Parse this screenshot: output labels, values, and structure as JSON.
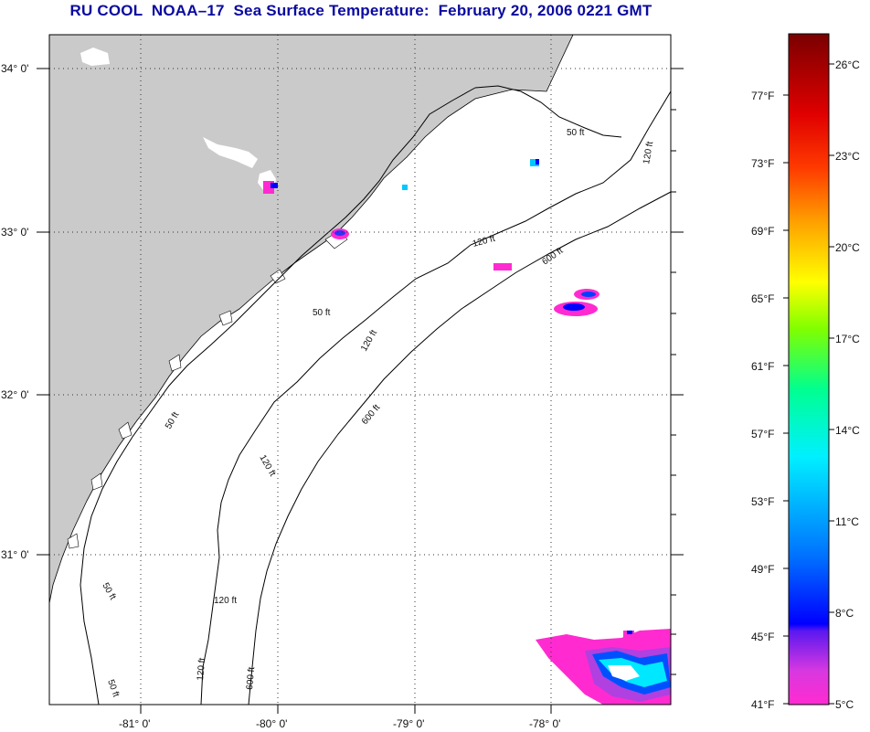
{
  "title": "RU COOL  NOAA–17  Sea Surface Temperature:  February 20, 2006 0221 GMT",
  "colors": {
    "land": "#cacaca",
    "ocean": "#ffffff",
    "cloud_mask": "#ffffff",
    "title": "#0a0aa0",
    "grid": "#333333"
  },
  "map": {
    "latitude_labels": [
      "34° 0'",
      "33° 0'",
      "32° 0'",
      "31° 0'"
    ],
    "longitude_labels": [
      "-81° 0'",
      "-80° 0'",
      "-79° 0'",
      "-78° 0'"
    ],
    "contour_labels": [
      {
        "text": "50 ft",
        "depth_ft": 50
      },
      {
        "text": "50 ft",
        "depth_ft": 50
      },
      {
        "text": "50 ft",
        "depth_ft": 50
      },
      {
        "text": "50 ft",
        "depth_ft": 50
      },
      {
        "text": "50 ft",
        "depth_ft": 50
      },
      {
        "text": "120 ft",
        "depth_ft": 120
      },
      {
        "text": "120 ft",
        "depth_ft": 120
      },
      {
        "text": "120 ft",
        "depth_ft": 120
      },
      {
        "text": "120 ft",
        "depth_ft": 120
      },
      {
        "text": "120 ft",
        "depth_ft": 120
      },
      {
        "text": "120 ft",
        "depth_ft": 120
      },
      {
        "text": "600 ft",
        "depth_ft": 600
      },
      {
        "text": "600 ft",
        "depth_ft": 600
      },
      {
        "text": "600 ft",
        "depth_ft": 600
      }
    ],
    "grid": "dotted"
  },
  "colorbar": {
    "stops": [
      "#ff2bd0",
      "#b040e0",
      "#0000ff",
      "#0078ff",
      "#00e8ff",
      "#00ff90",
      "#70ff00",
      "#ffff00",
      "#ffa000",
      "#ff3000",
      "#e00000",
      "#800000"
    ],
    "fahrenheit_labels": [
      "41°F",
      "45°F",
      "49°F",
      "53°F",
      "57°F",
      "61°F",
      "65°F",
      "69°F",
      "73°F",
      "77°F"
    ],
    "celsius_labels": [
      "5°C",
      "8°C",
      "11°C",
      "14°C",
      "17°C",
      "20°C",
      "23°C",
      "26°C"
    ]
  }
}
